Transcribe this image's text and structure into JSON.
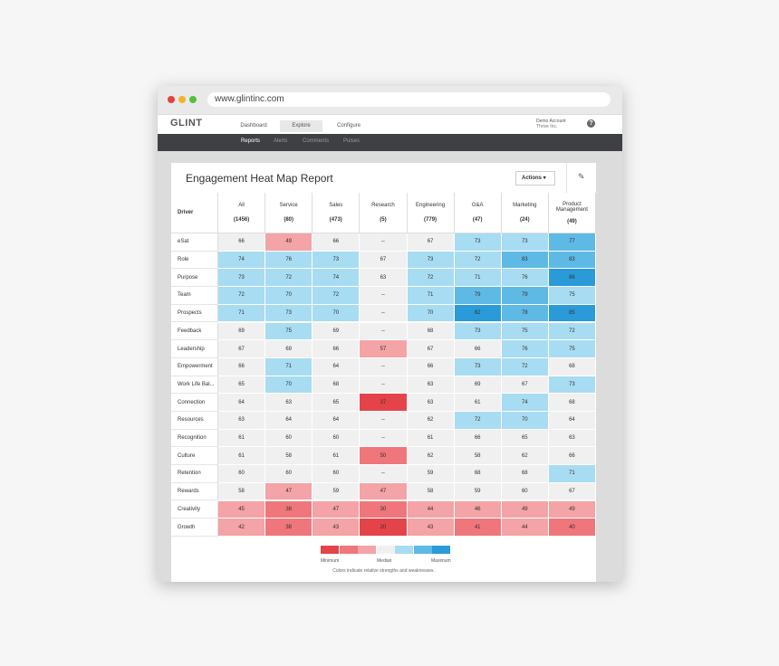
{
  "browser": {
    "url": "www.glintinc.com"
  },
  "nav": {
    "logo": "GLINT",
    "tabs": [
      "Dashboard",
      "Explore",
      "Configure"
    ],
    "account": "Demo Account",
    "org": "Thrive Inc.",
    "help": "?"
  },
  "subnav": {
    "tabs": [
      "Reports",
      "Alerts",
      "Comments",
      "Pulses"
    ]
  },
  "report": {
    "title": "Engagement Heat Map Report",
    "actions": "Actions"
  },
  "table": {
    "driver_header": "Driver",
    "columns": [
      {
        "name": "All",
        "count": "(1456)"
      },
      {
        "name": "Service",
        "count": "(80)"
      },
      {
        "name": "Sales",
        "count": "(473)"
      },
      {
        "name": "Research",
        "count": "(5)"
      },
      {
        "name": "Engineering",
        "count": "(779)"
      },
      {
        "name": "G&A",
        "count": "(47)"
      },
      {
        "name": "Marketing",
        "count": "(24)"
      },
      {
        "name": "Product Management",
        "count": "(49)"
      }
    ],
    "rows": [
      {
        "driver": "eSat",
        "values": [
          66,
          49,
          66,
          "--",
          67,
          73,
          73,
          77
        ],
        "colors": [
          "#f0f0f0",
          "#f4a3a6",
          "#f0f0f0",
          "#f0f0f0",
          "#f0f0f0",
          "#a8dcf2",
          "#a8dcf2",
          "#5fb9e5"
        ]
      },
      {
        "driver": "Role",
        "values": [
          74,
          76,
          73,
          67,
          73,
          72,
          83,
          83
        ],
        "colors": [
          "#a8dcf2",
          "#a8dcf2",
          "#a8dcf2",
          "#f0f0f0",
          "#a8dcf2",
          "#a8dcf2",
          "#5fb9e5",
          "#5fb9e5"
        ]
      },
      {
        "driver": "Purpose",
        "values": [
          73,
          72,
          74,
          63,
          72,
          71,
          76,
          86
        ],
        "colors": [
          "#a8dcf2",
          "#a8dcf2",
          "#a8dcf2",
          "#f0f0f0",
          "#a8dcf2",
          "#a8dcf2",
          "#a8dcf2",
          "#2a9ad8"
        ]
      },
      {
        "driver": "Team",
        "values": [
          72,
          70,
          72,
          "--",
          71,
          79,
          79,
          75
        ],
        "colors": [
          "#a8dcf2",
          "#a8dcf2",
          "#a8dcf2",
          "#f0f0f0",
          "#a8dcf2",
          "#5fb9e5",
          "#5fb9e5",
          "#a8dcf2"
        ]
      },
      {
        "driver": "Prospects",
        "values": [
          71,
          73,
          70,
          "--",
          70,
          82,
          78,
          85
        ],
        "colors": [
          "#a8dcf2",
          "#a8dcf2",
          "#a8dcf2",
          "#f0f0f0",
          "#a8dcf2",
          "#2a9ad8",
          "#5fb9e5",
          "#2a9ad8"
        ]
      },
      {
        "driver": "Feedback",
        "values": [
          69,
          75,
          69,
          "--",
          68,
          73,
          75,
          72
        ],
        "colors": [
          "#f0f0f0",
          "#a8dcf2",
          "#f0f0f0",
          "#f0f0f0",
          "#f0f0f0",
          "#a8dcf2",
          "#a8dcf2",
          "#a8dcf2"
        ]
      },
      {
        "driver": "Leadership",
        "values": [
          67,
          69,
          66,
          57,
          67,
          66,
          76,
          75
        ],
        "colors": [
          "#f0f0f0",
          "#f0f0f0",
          "#f0f0f0",
          "#f4a3a6",
          "#f0f0f0",
          "#f0f0f0",
          "#a8dcf2",
          "#a8dcf2"
        ]
      },
      {
        "driver": "Empowerment",
        "values": [
          66,
          71,
          64,
          "--",
          66,
          73,
          72,
          68
        ],
        "colors": [
          "#f0f0f0",
          "#a8dcf2",
          "#f0f0f0",
          "#f0f0f0",
          "#f0f0f0",
          "#a8dcf2",
          "#a8dcf2",
          "#f0f0f0"
        ]
      },
      {
        "driver": "Work Life Bal...",
        "values": [
          65,
          70,
          68,
          "--",
          63,
          69,
          67,
          73
        ],
        "colors": [
          "#f0f0f0",
          "#a8dcf2",
          "#f0f0f0",
          "#f0f0f0",
          "#f0f0f0",
          "#f0f0f0",
          "#f0f0f0",
          "#a8dcf2"
        ]
      },
      {
        "driver": "Connection",
        "values": [
          64,
          63,
          65,
          37,
          63,
          61,
          74,
          68
        ],
        "colors": [
          "#f0f0f0",
          "#f0f0f0",
          "#f0f0f0",
          "#e5434a",
          "#f0f0f0",
          "#f0f0f0",
          "#a8dcf2",
          "#f0f0f0"
        ]
      },
      {
        "driver": "Resources",
        "values": [
          63,
          64,
          64,
          "--",
          62,
          72,
          70,
          64
        ],
        "colors": [
          "#f0f0f0",
          "#f0f0f0",
          "#f0f0f0",
          "#f0f0f0",
          "#f0f0f0",
          "#a8dcf2",
          "#a8dcf2",
          "#f0f0f0"
        ]
      },
      {
        "driver": "Recognition",
        "values": [
          61,
          60,
          60,
          "--",
          61,
          66,
          65,
          63
        ],
        "colors": [
          "#f0f0f0",
          "#f0f0f0",
          "#f0f0f0",
          "#f0f0f0",
          "#f0f0f0",
          "#f0f0f0",
          "#f0f0f0",
          "#f0f0f0"
        ]
      },
      {
        "driver": "Culture",
        "values": [
          61,
          58,
          61,
          50,
          62,
          58,
          62,
          66
        ],
        "colors": [
          "#f0f0f0",
          "#f0f0f0",
          "#f0f0f0",
          "#ef767b",
          "#f0f0f0",
          "#f0f0f0",
          "#f0f0f0",
          "#f0f0f0"
        ]
      },
      {
        "driver": "Retention",
        "values": [
          60,
          60,
          60,
          "--",
          59,
          68,
          68,
          71
        ],
        "colors": [
          "#f0f0f0",
          "#f0f0f0",
          "#f0f0f0",
          "#f0f0f0",
          "#f0f0f0",
          "#f0f0f0",
          "#f0f0f0",
          "#a8dcf2"
        ]
      },
      {
        "driver": "Rewards",
        "values": [
          58,
          47,
          59,
          47,
          58,
          59,
          60,
          67
        ],
        "colors": [
          "#f0f0f0",
          "#f4a3a6",
          "#f0f0f0",
          "#f4a3a6",
          "#f0f0f0",
          "#f0f0f0",
          "#f0f0f0",
          "#f0f0f0"
        ]
      },
      {
        "driver": "Creativity",
        "values": [
          45,
          38,
          47,
          30,
          44,
          46,
          49,
          49
        ],
        "colors": [
          "#f4a3a6",
          "#ef767b",
          "#f4a3a6",
          "#ef767b",
          "#f4a3a6",
          "#f4a3a6",
          "#f4a3a6",
          "#f4a3a6"
        ]
      },
      {
        "driver": "Growth",
        "values": [
          42,
          38,
          43,
          20,
          43,
          41,
          44,
          40
        ],
        "colors": [
          "#f4a3a6",
          "#ef767b",
          "#f4a3a6",
          "#e5434a",
          "#f4a3a6",
          "#ef767b",
          "#f4a3a6",
          "#ef767b"
        ]
      }
    ]
  },
  "legend": {
    "colors": [
      "#e5434a",
      "#ef767b",
      "#f4a3a6",
      "#f0f0f0",
      "#a8dcf2",
      "#5fb9e5",
      "#2a9ad8"
    ],
    "labels": [
      "Minimum",
      "Median",
      "Maximum"
    ],
    "note": "Colors indicate relative strengths and weaknesses."
  }
}
